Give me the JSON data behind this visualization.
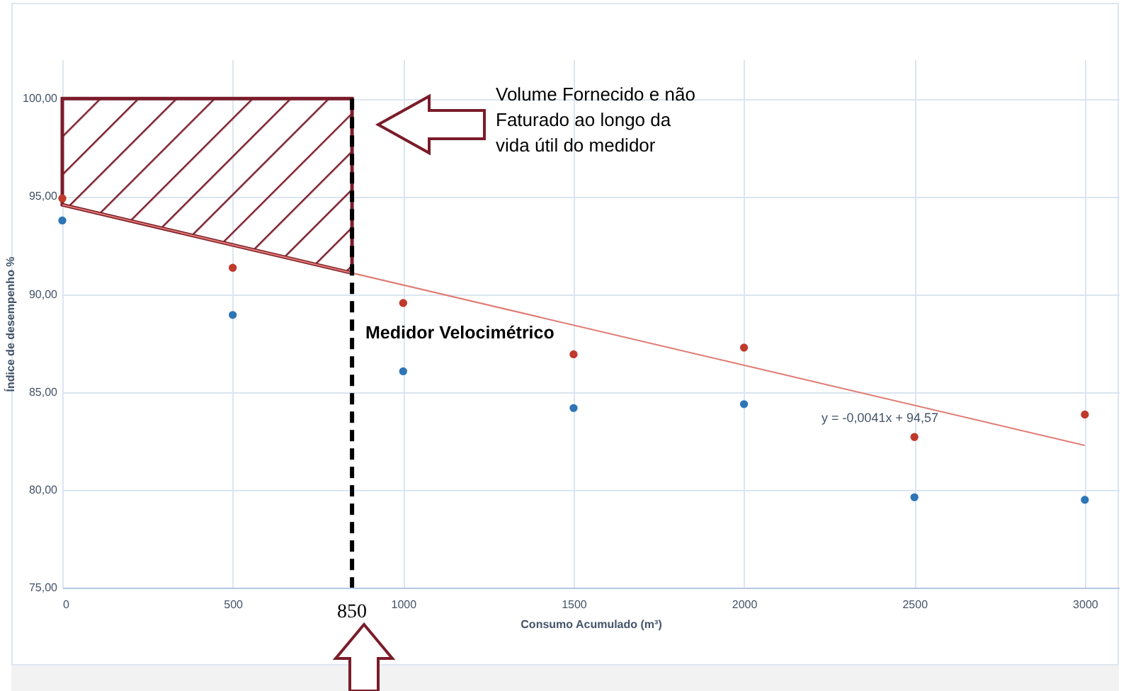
{
  "chart_data": {
    "type": "scatter",
    "xlabel": "Consumo Acumulado (m³)",
    "ylabel": "Índice de desempenho %",
    "xlim": [
      0,
      3100
    ],
    "xticks": [
      0,
      500,
      {
        "value": 1000,
        "label": "1000"
      },
      {
        "value": 1500,
        "label": "1500"
      },
      {
        "value": 2000,
        "label": "2000"
      },
      {
        "value": 2500,
        "label": "2500"
      },
      {
        "value": 3000,
        "label": "3000"
      }
    ],
    "ylim": [
      75,
      102
    ],
    "yticks": [
      {
        "value": 75,
        "label": "75,00"
      },
      {
        "value": 80,
        "label": "80,00"
      },
      {
        "value": 85,
        "label": "85,00"
      },
      {
        "value": 90,
        "label": "90,00"
      },
      {
        "value": 95,
        "label": "95,00"
      },
      {
        "value": 100,
        "label": "100,00"
      }
    ],
    "grid": true,
    "x": [
      0,
      500,
      1000,
      1500,
      2000,
      2500,
      3000
    ],
    "series": [
      {
        "type": "area",
        "color": "#7b1c2a",
        "x": [
          0,
          850
        ],
        "values": [
          100,
          100
        ]
      },
      {
        "type": "line",
        "color": "#e07a72",
        "x": [
          0,
          3000
        ],
        "values": [
          94.57,
          82.27
        ]
      },
      {
        "color": "#c0392b",
        "marker": "circle",
        "values": [
          94.9,
          91.35,
          89.55,
          86.93,
          87.27,
          82.7,
          83.85
        ]
      },
      {
        "color": "#2e75b6",
        "marker": "circle",
        "values": [
          93.77,
          88.94,
          86.06,
          84.18,
          84.38,
          79.62,
          79.49
        ]
      }
    ],
    "ref_lines": [
      {
        "axis": "x",
        "value": 850,
        "label": "850",
        "color": "#000000",
        "line_style": "dashed"
      }
    ],
    "annotations": [
      "Volume Fornecido e não\nFaturado ao longo da\nvida útil do medidor",
      "Medidor Velocimétrico",
      "y = -0,0041x + 94,57"
    ]
  }
}
